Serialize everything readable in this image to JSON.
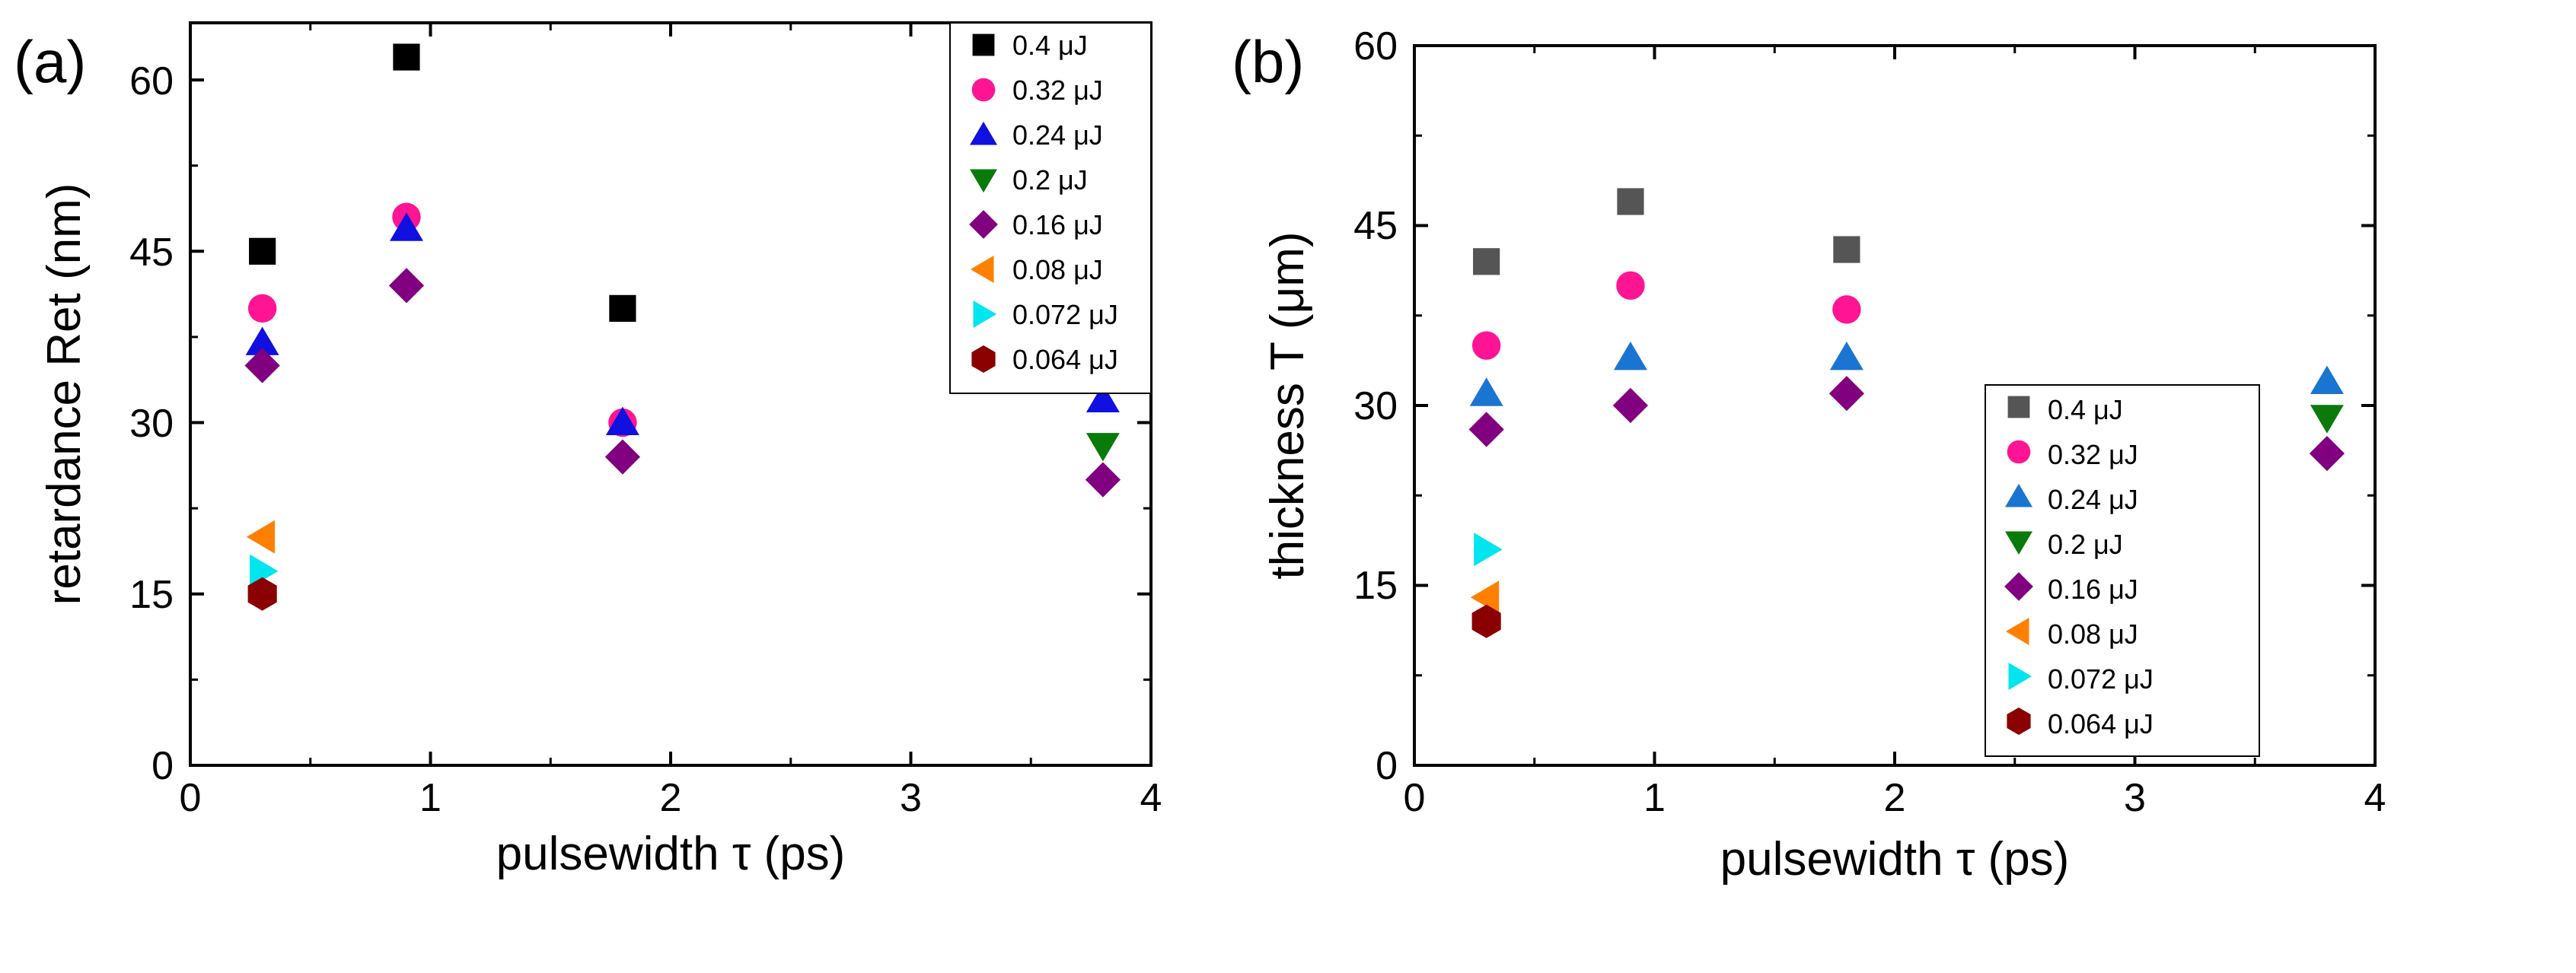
{
  "chart_data": [
    {
      "panel_label": "(a)",
      "type": "scatter",
      "xlabel": "pulsewidth τ (ps)",
      "ylabel": "retardance Ret (nm)",
      "xlim": [
        0,
        4
      ],
      "ylim": [
        0,
        65
      ],
      "xticks": [
        "0",
        "1",
        "2",
        "3",
        "4"
      ],
      "yticks": [
        "0",
        "15",
        "30",
        "45",
        "60"
      ],
      "grid": false,
      "legend_position": "top-right",
      "series": [
        {
          "name": "0.4 μJ",
          "marker": "square",
          "color": "#000000",
          "points": [
            [
              0.3,
              45
            ],
            [
              0.9,
              62
            ],
            [
              1.8,
              40
            ]
          ]
        },
        {
          "name": "0.32 μJ",
          "marker": "circle",
          "color": "#ff1493",
          "points": [
            [
              0.3,
              40
            ],
            [
              0.9,
              48
            ],
            [
              1.8,
              30
            ]
          ]
        },
        {
          "name": "0.24 μJ",
          "marker": "triangle-up",
          "color": "#1010e0",
          "points": [
            [
              0.3,
              37
            ],
            [
              0.9,
              47
            ],
            [
              1.8,
              30
            ],
            [
              3.8,
              32
            ]
          ]
        },
        {
          "name": "0.2 μJ",
          "marker": "triangle-down",
          "color": "#0a7a0a",
          "points": [
            [
              3.8,
              28
            ]
          ]
        },
        {
          "name": "0.16 μJ",
          "marker": "diamond",
          "color": "#800080",
          "points": [
            [
              0.3,
              35
            ],
            [
              0.9,
              42
            ],
            [
              1.8,
              27
            ],
            [
              3.8,
              25
            ]
          ]
        },
        {
          "name": "0.08 μJ",
          "marker": "triangle-left",
          "color": "#ff8000",
          "points": [
            [
              0.3,
              20
            ]
          ]
        },
        {
          "name": "0.072 μJ",
          "marker": "triangle-right",
          "color": "#00e5ee",
          "points": [
            [
              0.3,
              17
            ]
          ]
        },
        {
          "name": "0.064 μJ",
          "marker": "hexagon",
          "color": "#8b0000",
          "points": [
            [
              0.3,
              15
            ]
          ]
        }
      ]
    },
    {
      "panel_label": "(b)",
      "type": "scatter",
      "xlabel": "pulsewidth τ (ps)",
      "ylabel": "thickness T (μm)",
      "xlim": [
        0,
        4
      ],
      "ylim": [
        0,
        60
      ],
      "xticks": [
        "0",
        "1",
        "2",
        "3",
        "4"
      ],
      "yticks": [
        "0",
        "15",
        "30",
        "45",
        "60"
      ],
      "grid": false,
      "legend_position": "bottom-right",
      "series": [
        {
          "name": "0.4 μJ",
          "marker": "square",
          "color": "#555555",
          "points": [
            [
              0.3,
              42
            ],
            [
              0.9,
              47
            ],
            [
              1.8,
              43
            ]
          ]
        },
        {
          "name": "0.32 μJ",
          "marker": "circle",
          "color": "#ff1493",
          "points": [
            [
              0.3,
              35
            ],
            [
              0.9,
              40
            ],
            [
              1.8,
              38
            ]
          ]
        },
        {
          "name": "0.24 μJ",
          "marker": "triangle-up",
          "color": "#1a75d2",
          "points": [
            [
              0.3,
              31
            ],
            [
              0.9,
              34
            ],
            [
              1.8,
              34
            ],
            [
              3.8,
              32
            ]
          ]
        },
        {
          "name": "0.2 μJ",
          "marker": "triangle-down",
          "color": "#0a7a0a",
          "points": [
            [
              3.8,
              29
            ]
          ]
        },
        {
          "name": "0.16 μJ",
          "marker": "diamond",
          "color": "#800080",
          "points": [
            [
              0.3,
              28
            ],
            [
              0.9,
              30
            ],
            [
              1.8,
              31
            ],
            [
              3.8,
              26
            ]
          ]
        },
        {
          "name": "0.08 μJ",
          "marker": "triangle-left",
          "color": "#ff8000",
          "points": [
            [
              0.3,
              14
            ]
          ]
        },
        {
          "name": "0.072 μJ",
          "marker": "triangle-right",
          "color": "#00e5ee",
          "points": [
            [
              0.3,
              18
            ]
          ]
        },
        {
          "name": "0.064 μJ",
          "marker": "hexagon",
          "color": "#8b0000",
          "points": [
            [
              0.3,
              12
            ]
          ]
        }
      ]
    }
  ]
}
